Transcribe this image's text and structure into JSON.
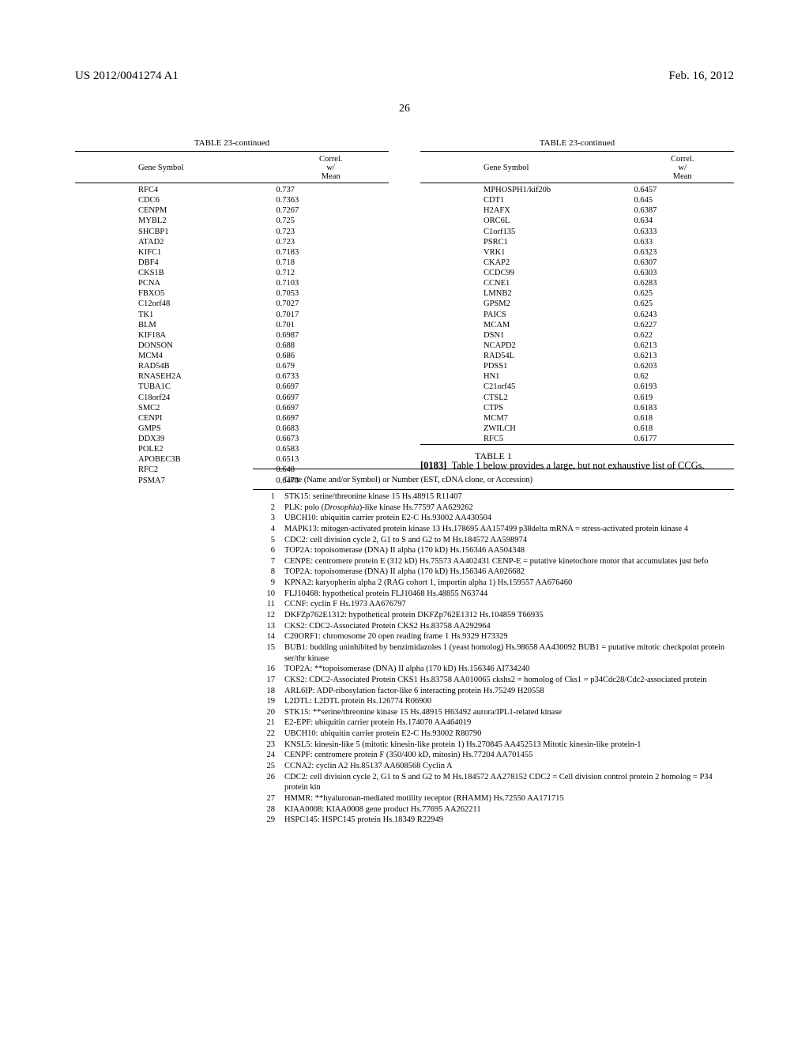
{
  "header": {
    "left": "US 2012/0041274 A1",
    "right": "Feb. 16, 2012",
    "page_number": "26"
  },
  "table23": {
    "caption": "TABLE 23-continued",
    "col_headers": {
      "gene": "Gene Symbol",
      "correl_line1": "Correl.",
      "correl_line2": "w/",
      "correl_line3": "Mean"
    },
    "left_rows": [
      {
        "g": "RFC4",
        "v": "0.737"
      },
      {
        "g": "CDC6",
        "v": "0.7363"
      },
      {
        "g": "CENPM",
        "v": "0.7267"
      },
      {
        "g": "MYBL2",
        "v": "0.725"
      },
      {
        "g": "SHCBP1",
        "v": "0.723"
      },
      {
        "g": "ATAD2",
        "v": "0.723"
      },
      {
        "g": "KIFC1",
        "v": "0.7183"
      },
      {
        "g": "DBF4",
        "v": "0.718"
      },
      {
        "g": "CKS1B",
        "v": "0.712"
      },
      {
        "g": "PCNA",
        "v": "0.7103"
      },
      {
        "g": "FBXO5",
        "v": "0.7053"
      },
      {
        "g": "C12orf48",
        "v": "0.7027"
      },
      {
        "g": "TK1",
        "v": "0.7017"
      },
      {
        "g": "BLM",
        "v": "0.701"
      },
      {
        "g": "KIF18A",
        "v": "0.6987"
      },
      {
        "g": "DONSON",
        "v": "0.688"
      },
      {
        "g": "MCM4",
        "v": "0.686"
      },
      {
        "g": "RAD54B",
        "v": "0.679"
      },
      {
        "g": "RNASEH2A",
        "v": "0.6733"
      },
      {
        "g": "TUBA1C",
        "v": "0.6697"
      },
      {
        "g": "C18orf24",
        "v": "0.6697"
      },
      {
        "g": "SMC2",
        "v": "0.6697"
      },
      {
        "g": "CENPI",
        "v": "0.6697"
      },
      {
        "g": "GMPS",
        "v": "0.6683"
      },
      {
        "g": "DDX39",
        "v": "0.6673"
      },
      {
        "g": "POLE2",
        "v": "0.6583"
      },
      {
        "g": "APOBEC3B",
        "v": "0.6513"
      },
      {
        "g": "RFC2",
        "v": "0.648"
      },
      {
        "g": "PSMA7",
        "v": "0.6473"
      }
    ],
    "right_rows": [
      {
        "g": "MPHOSPH1/kif20b",
        "v": "0.6457"
      },
      {
        "g": "CDT1",
        "v": "0.645"
      },
      {
        "g": "H2AFX",
        "v": "0.6387"
      },
      {
        "g": "ORC6L",
        "v": "0.634"
      },
      {
        "g": "C1orf135",
        "v": "0.6333"
      },
      {
        "g": "PSRC1",
        "v": "0.633"
      },
      {
        "g": "VRK1",
        "v": "0.6323"
      },
      {
        "g": "CKAP2",
        "v": "0.6307"
      },
      {
        "g": "CCDC99",
        "v": "0.6303"
      },
      {
        "g": "CCNE1",
        "v": "0.6283"
      },
      {
        "g": "LMNB2",
        "v": "0.625"
      },
      {
        "g": "GPSM2",
        "v": "0.625"
      },
      {
        "g": "PAICS",
        "v": "0.6243"
      },
      {
        "g": "MCAM",
        "v": "0.6227"
      },
      {
        "g": "DSN1",
        "v": "0.622"
      },
      {
        "g": "NCAPD2",
        "v": "0.6213"
      },
      {
        "g": "RAD54L",
        "v": "0.6213"
      },
      {
        "g": "PDSS1",
        "v": "0.6203"
      },
      {
        "g": "HN1",
        "v": "0.62"
      },
      {
        "g": "C21orf45",
        "v": "0.6193"
      },
      {
        "g": "CTSL2",
        "v": "0.619"
      },
      {
        "g": "CTPS",
        "v": "0.6183"
      },
      {
        "g": "MCM7",
        "v": "0.618"
      },
      {
        "g": "ZWILCH",
        "v": "0.618"
      },
      {
        "g": "RFC5",
        "v": "0.6177"
      }
    ]
  },
  "paragraph": {
    "num": "[0183]",
    "text": "Table 1 below provides a large, but not exhaustive list of CCGs."
  },
  "table1": {
    "caption": "TABLE 1",
    "header": "Gene (Name and/or Symbol) or Number (EST, cDNA clone, or Accession)",
    "rows": [
      {
        "i": "1",
        "t": "STK15: serine/threonine kinase 15 Hs.48915 R11407"
      },
      {
        "i": "2",
        "t": "PLK: polo (<span class=\"ital\">Drosophia</span>)-like kinase Hs.77597 AA629262"
      },
      {
        "i": "3",
        "t": "UBCH10: ubiquitin carrier protein E2-C Hs.93002 AA430504"
      },
      {
        "i": "4",
        "t": "MAPK13: mitogen-activated protein kinase 13 Hs.178695 AA157499 p38delta mRNA = stress-activated protein kinase 4"
      },
      {
        "i": "5",
        "t": "CDC2: cell division cycle 2, G1 to S and G2 to M Hs.184572 AA598974"
      },
      {
        "i": "6",
        "t": "TOP2A: topoisomerase (DNA) II alpha (170 kD) Hs.156346 AA504348"
      },
      {
        "i": "7",
        "t": "CENPE: centromere protein E (312 kD) Hs.75573 AA402431 CENP-E = putative kinetochore motor that accumulates just befo"
      },
      {
        "i": "8",
        "t": "TOP2A: topoisomerase (DNA) II alpha (170 kD) Hs.156346 AA026682"
      },
      {
        "i": "9",
        "t": "KPNA2: karyopherin alpha 2 (RAG cohort 1, importin alpha 1) Hs.159557 AA676460"
      },
      {
        "i": "10",
        "t": "FLJ10468: hypothetical protein FLJ10468 Hs.48855 N63744"
      },
      {
        "i": "11",
        "t": "CCNF: cyclin F Hs.1973 AA676797"
      },
      {
        "i": "12",
        "t": "DKFZp762E1312: hypothetical protein DKFZp762E1312 Hs.104859 T66935"
      },
      {
        "i": "13",
        "t": "CKS2: CDC2-Associated Protein CKS2 Hs.83758 AA292964"
      },
      {
        "i": "14",
        "t": "C20ORF1: chromosome 20 open reading frame 1 Hs.9329 H73329"
      },
      {
        "i": "15",
        "t": "BUB1: budding uninhibited by benzimidazoles 1 (yeast homolog) Hs.98658 AA430092 BUB1 = putative mitotic checkpoint protein ser/thr kinase"
      },
      {
        "i": "16",
        "t": "TOP2A: **topoisomerase (DNA) II alpha (170 kD) Hs.156346 AI734240"
      },
      {
        "i": "17",
        "t": "CKS2: CDC2-Associated Protein CKS1 Hs.83758 AA010065 ckshs2 = homolog of Cks1 = p34Cdc28/Cdc2-associated protein"
      },
      {
        "i": "18",
        "t": "ARL6IP: ADP-ribosylation factor-like 6 interacting protein Hs.75249 H20558"
      },
      {
        "i": "19",
        "t": "L2DTL: L2DTL protein Hs.126774 R06900"
      },
      {
        "i": "20",
        "t": "STK15: **serine/threonine kinase 15 Hs.48915 H63492 aurora/IPL1-related kinase"
      },
      {
        "i": "21",
        "t": "E2-EPF: ubiquitin carrier protein Hs.174070 AA464019"
      },
      {
        "i": "22",
        "t": "UBCH10: ubiquitin carrier protein E2-C Hs.93002 R80790"
      },
      {
        "i": "23",
        "t": "KNSL5: kinesin-like 5 (mitotic kinesin-like protein 1) Hs.270845 AA452513 Mitotic kinesin-like protein-1"
      },
      {
        "i": "24",
        "t": "CENPF: centromere protein F (350/400 kD, mitosin) Hs.77204 AA701455"
      },
      {
        "i": "25",
        "t": "CCNA2: cyclin A2 Hs.85137 AA608568 Cyclin A"
      },
      {
        "i": "26",
        "t": "CDC2: cell division cycle 2, G1 to S and G2 to M Hs.184572 AA278152 CDC2 = Cell division control protein 2 homolog = P34 protein kin"
      },
      {
        "i": "27",
        "t": "HMMR: **hyaluronan-mediated motility receptor (RHAMM) Hs.72550 AA171715"
      },
      {
        "i": "28",
        "t": "KIAA0008: KIAA0008 gene product Hs.77695 AA262211"
      },
      {
        "i": "29",
        "t": "HSPC145: HSPC145 protein Hs.18349 R22949"
      }
    ]
  }
}
